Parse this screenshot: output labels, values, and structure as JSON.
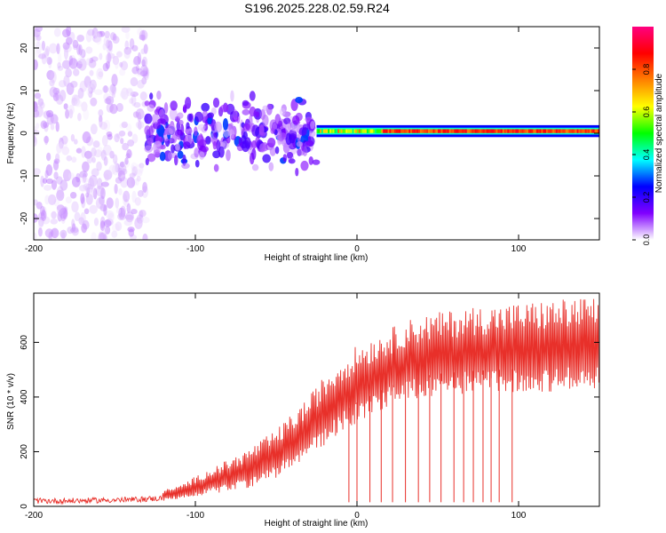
{
  "title": "S196.2025.228.02.59.R24",
  "chart_data": [
    {
      "type": "heatmap",
      "title": "S196.2025.228.02.59.R24",
      "xlabel": "Height of straight line (km)",
      "ylabel": "Frequency (Hz)",
      "xlim": [
        -200,
        150
      ],
      "ylim": [
        -25,
        25
      ],
      "xticks": [
        -200,
        -100,
        0,
        100
      ],
      "yticks": [
        -20,
        -10,
        0,
        10,
        20
      ],
      "colorbar": {
        "label": "Normalized spectral amplitude",
        "range": [
          0,
          1
        ],
        "ticks": [
          0.0,
          0.2,
          0.4,
          0.6,
          0.8
        ],
        "colors": [
          "#ffffff",
          "#8000ff",
          "#0000ff",
          "#00ffff",
          "#00ff00",
          "#ffff00",
          "#ff8000",
          "#ff0000",
          "#ff0080"
        ]
      },
      "regions": [
        {
          "x_range": [
            -200,
            -130
          ],
          "freq_spread": 25,
          "amplitude": 0.05,
          "description": "scattered weak noise"
        },
        {
          "x_range": [
            -130,
            -25
          ],
          "freq_spread": 8,
          "amplitude": 0.15,
          "description": "moderate blobs"
        },
        {
          "x_range": [
            -25,
            150
          ],
          "freq_center": 0.5,
          "freq_spread": 1,
          "amplitude": 0.9,
          "description": "strong narrow line"
        }
      ]
    },
    {
      "type": "line",
      "xlabel": "Height of straight line (km)",
      "ylabel": "SNR (10 * v/v)",
      "xlim": [
        -200,
        150
      ],
      "ylim": [
        0,
        780
      ],
      "xticks": [
        -200,
        -100,
        0,
        100
      ],
      "yticks": [
        0,
        200,
        400,
        600
      ],
      "color": "#e8302a",
      "series": [
        {
          "name": "SNR",
          "x": [
            -200,
            -180,
            -160,
            -140,
            -120,
            -110,
            -100,
            -90,
            -80,
            -70,
            -60,
            -50,
            -40,
            -30,
            -20,
            -10,
            0,
            10,
            20,
            30,
            40,
            50,
            60,
            70,
            80,
            90,
            100,
            110,
            120,
            130,
            140,
            150
          ],
          "y": [
            20,
            20,
            22,
            24,
            30,
            40,
            55,
            70,
            85,
            100,
            120,
            150,
            190,
            240,
            290,
            340,
            380,
            410,
            440,
            460,
            475,
            485,
            490,
            495,
            498,
            500,
            502,
            505,
            505,
            508,
            510,
            510
          ],
          "peaks": [
            25,
            25,
            30,
            35,
            60,
            75,
            110,
            140,
            170,
            200,
            240,
            280,
            340,
            400,
            480,
            540,
            590,
            620,
            650,
            680,
            700,
            710,
            720,
            730,
            735,
            740,
            745,
            750,
            755,
            760,
            765,
            765
          ]
        }
      ],
      "dropout_positions_km": [
        -5,
        0,
        8,
        15,
        22,
        30,
        38,
        45,
        52,
        60,
        66,
        72,
        78,
        83,
        88,
        96
      ]
    }
  ]
}
